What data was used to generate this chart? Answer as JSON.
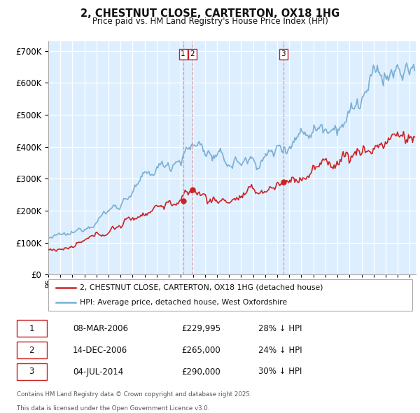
{
  "title": "2, CHESTNUT CLOSE, CARTERTON, OX18 1HG",
  "subtitle": "Price paid vs. HM Land Registry's House Price Index (HPI)",
  "legend_property": "2, CHESTNUT CLOSE, CARTERTON, OX18 1HG (detached house)",
  "legend_hpi": "HPI: Average price, detached house, West Oxfordshire",
  "footer_line1": "Contains HM Land Registry data © Crown copyright and database right 2025.",
  "footer_line2": "This data is licensed under the Open Government Licence v3.0.",
  "transactions": [
    {
      "num": 1,
      "date": "08-MAR-2006",
      "price": "£229,995",
      "pct": "28% ↓ HPI",
      "year": 2006.19
    },
    {
      "num": 2,
      "date": "14-DEC-2006",
      "price": "£265,000",
      "pct": "24% ↓ HPI",
      "year": 2006.96
    },
    {
      "num": 3,
      "date": "04-JUL-2014",
      "price": "£290,000",
      "pct": "30% ↓ HPI",
      "year": 2014.51
    }
  ],
  "t1_price": 229995,
  "t2_price": 265000,
  "t3_price": 290000,
  "property_color": "#cc2222",
  "hpi_color": "#7aafd4",
  "vline_color": "#dd8888",
  "marker_box_color": "#cc2222",
  "ylim": [
    0,
    730000
  ],
  "yticks": [
    0,
    100000,
    200000,
    300000,
    400000,
    500000,
    600000,
    700000
  ],
  "xlim_start": 1995.0,
  "xlim_end": 2025.5,
  "background_color": "#ffffff",
  "plot_bg_color": "#ddeeff",
  "grid_color": "#ffffff"
}
